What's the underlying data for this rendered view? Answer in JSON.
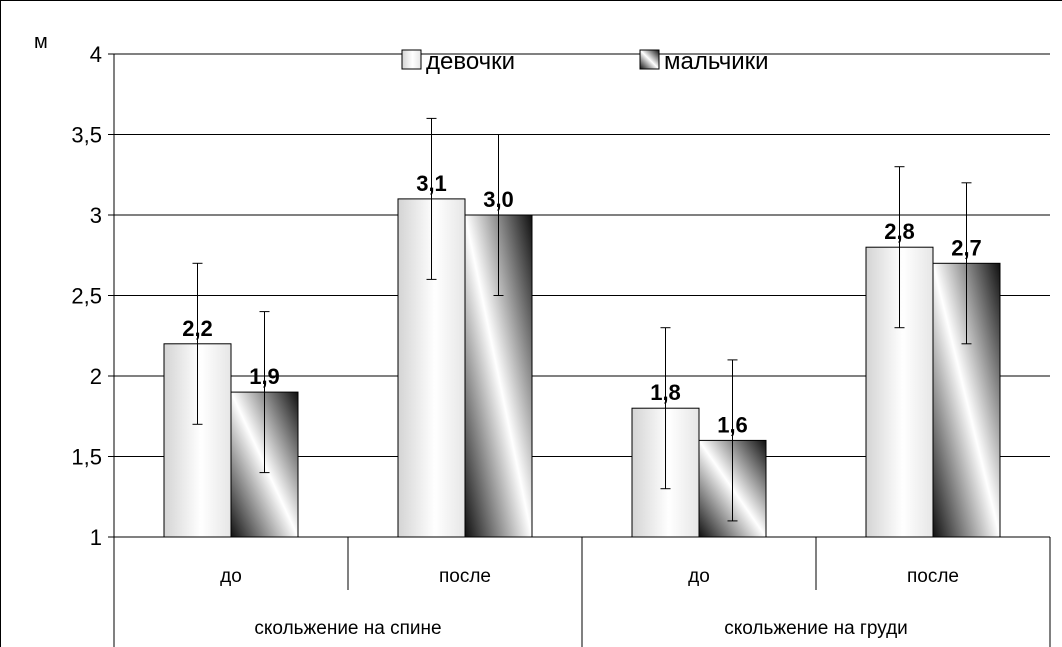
{
  "chart_data": {
    "type": "bar",
    "ylabel": "м",
    "ylim": [
      1,
      4
    ],
    "yticks": [
      "1",
      "1,5",
      "2",
      "2,5",
      "3",
      "3,5",
      "4"
    ],
    "grid": true,
    "legend_position": "top",
    "categories": [
      "до",
      "после",
      "до",
      "после"
    ],
    "groups": [
      "скольжение на спине",
      "скольжение на груди"
    ],
    "series": [
      {
        "name": "девочки",
        "values": [
          2.2,
          3.1,
          1.8,
          2.8
        ],
        "labels": [
          "2,2",
          "3,1",
          "1,8",
          "2,8"
        ],
        "error": [
          0.5,
          0.5,
          0.5,
          0.5
        ],
        "color": "#f2f2f2"
      },
      {
        "name": "мальчики",
        "values": [
          1.9,
          3.0,
          1.6,
          2.7
        ],
        "labels": [
          "1,9",
          "3,0",
          "1,6",
          "2,7"
        ],
        "error": [
          0.5,
          0.5,
          0.5,
          0.5
        ],
        "color": "#202020"
      }
    ]
  }
}
